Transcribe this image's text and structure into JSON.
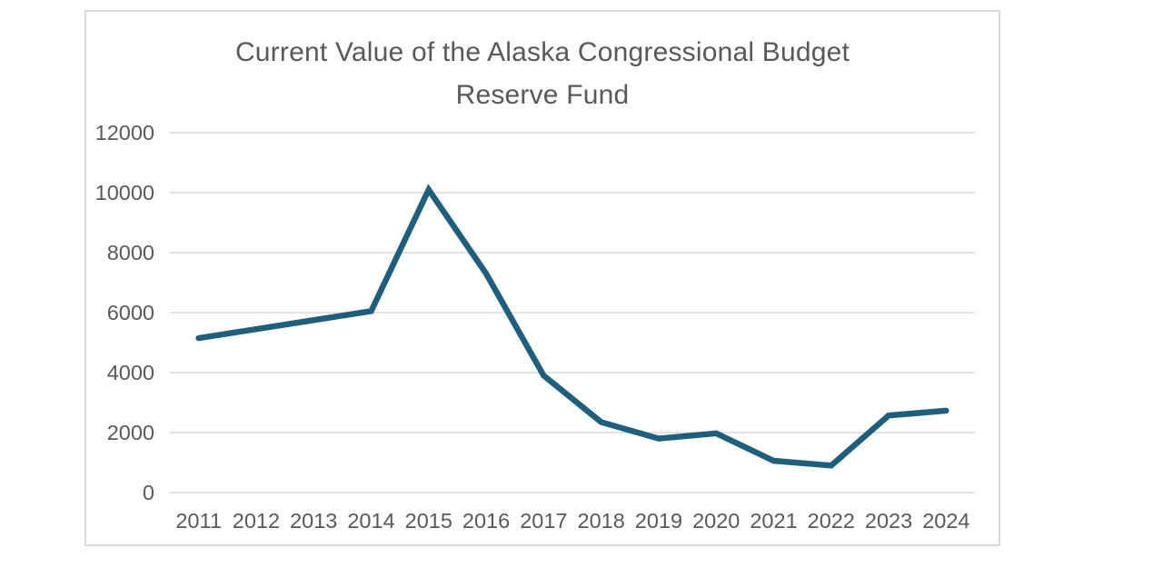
{
  "chart_data": {
    "type": "line",
    "title": "Current Value of the Alaska Congressional Budget Reserve Fund",
    "title_lines": [
      "Current Value of the Alaska Congressional Budget",
      "Reserve Fund"
    ],
    "xlabel": "",
    "ylabel": "",
    "categories": [
      "2011",
      "2012",
      "2013",
      "2014",
      "2015",
      "2016",
      "2017",
      "2018",
      "2019",
      "2020",
      "2021",
      "2022",
      "2023",
      "2024"
    ],
    "series": [
      {
        "name": "Current Value of the Alaska Congressional Budget Reserve Fund",
        "values": [
          5150,
          5450,
          5750,
          6050,
          10100,
          7300,
          3900,
          2350,
          1800,
          1975,
          1060,
          900,
          2570,
          2730
        ]
      }
    ],
    "ylim": [
      0,
      12000
    ],
    "yticks": [
      0,
      2000,
      4000,
      6000,
      8000,
      10000,
      12000
    ],
    "grid": "horizontal",
    "legend": "none",
    "colors": {
      "line": "#1f5f7e",
      "gridline": "#d9d9d9",
      "tick_label": "#595959",
      "title": "#595959",
      "frame_border": "#d9d9d9",
      "background": "#ffffff"
    }
  }
}
